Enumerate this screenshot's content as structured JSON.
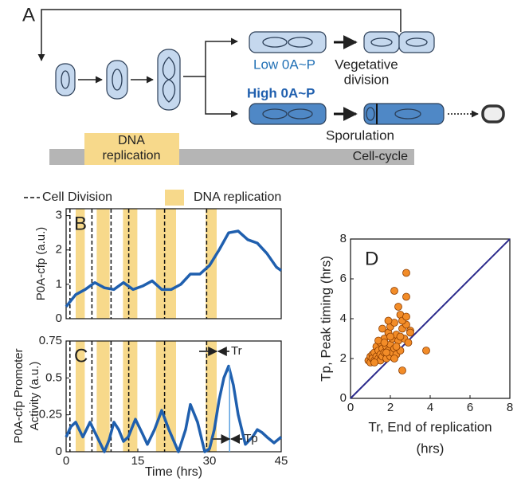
{
  "panel_a": {
    "label": "A",
    "low_label": "Low 0A~P",
    "vegetative": [
      "Vegetative",
      "division"
    ],
    "high_label": "High 0A~P",
    "sporulation": "Sporulation",
    "replication": [
      "DNA",
      "replication"
    ],
    "cell_cycle": "Cell-cycle"
  },
  "chart_data": [
    {
      "type": "line",
      "panel": "B",
      "ylabel": "P0A-cfp (a.u.)",
      "legend": [
        "Cell Division",
        "DNA replication"
      ],
      "x": [
        0,
        2,
        4,
        6,
        8,
        10,
        12,
        14,
        16,
        18,
        20,
        22,
        24,
        26,
        28,
        30,
        32,
        34,
        36,
        38,
        40,
        42,
        44,
        45
      ],
      "values": [
        0.35,
        0.7,
        0.85,
        1.05,
        0.9,
        0.85,
        1.05,
        0.85,
        0.95,
        1.1,
        0.85,
        0.85,
        1.0,
        1.3,
        1.3,
        1.55,
        2.0,
        2.5,
        2.55,
        2.3,
        2.2,
        1.9,
        1.5,
        1.4
      ],
      "color": "#1f5fae",
      "band_color": "#f7d98b",
      "divisions": [
        0.8,
        5.4,
        9.4,
        13.1,
        20.6,
        29.4
      ],
      "replication": [
        [
          2,
          3.9
        ],
        [
          6.4,
          9.1
        ],
        [
          11.9,
          14.9
        ],
        [
          18.8,
          23
        ],
        [
          29.2,
          31.5
        ]
      ],
      "xlim": [
        0,
        45
      ],
      "ylim": [
        0,
        3.2
      ],
      "yticks": [
        0,
        1,
        2,
        3
      ]
    },
    {
      "type": "line",
      "panel": "C",
      "ylabel": [
        "P0A-cfp Promoter",
        "Activity (a.u.)"
      ],
      "xlabel": "Time (hrs)",
      "x": [
        0,
        1,
        2,
        3.5,
        5,
        6.5,
        8,
        9,
        10,
        11,
        12,
        13,
        14.5,
        16,
        17,
        18.5,
        20,
        21.5,
        23.5,
        25,
        26,
        27.5,
        29,
        30,
        31,
        32,
        33,
        34,
        35,
        36,
        37.5,
        39,
        40,
        41,
        42,
        43.5,
        45
      ],
      "values": [
        0.1,
        0.17,
        0.2,
        0.1,
        0.2,
        0.1,
        0.0,
        0.08,
        0.2,
        0.15,
        0.07,
        0.1,
        0.22,
        0.12,
        0.05,
        0.15,
        0.28,
        0.15,
        0.0,
        0.15,
        0.32,
        0.2,
        0.0,
        0.02,
        0.15,
        0.35,
        0.5,
        0.58,
        0.45,
        0.25,
        0.05,
        0.1,
        0.15,
        0.13,
        0.1,
        0.06,
        0.1
      ],
      "color": "#1f5fae",
      "band_color": "#f7d98b",
      "divisions": [
        0.8,
        5.4,
        9.4,
        13.1,
        20.6,
        29.4
      ],
      "replication": [
        [
          2,
          3.9
        ],
        [
          6.4,
          9.1
        ],
        [
          11.9,
          14.9
        ],
        [
          18.8,
          23
        ],
        [
          29.2,
          31.5
        ]
      ],
      "annotations": [
        {
          "label": "Tr",
          "x": 31.5
        },
        {
          "label": "Tp",
          "x": 34.2
        }
      ],
      "xlim": [
        0,
        45
      ],
      "xticks": [
        0,
        15,
        30,
        45
      ],
      "ylim": [
        0,
        0.75
      ],
      "yticks": [
        0,
        0.25,
        0.5,
        0.75
      ]
    },
    {
      "type": "scatter",
      "panel": "D",
      "xlabel": [
        "Tr, End of replication",
        "(hrs)"
      ],
      "ylabel": "Tp, Peak timing (hrs)",
      "x": [
        0.9,
        1.0,
        1.0,
        1.1,
        1.1,
        1.2,
        1.2,
        1.3,
        1.3,
        1.4,
        1.4,
        1.5,
        1.5,
        1.5,
        1.6,
        1.6,
        1.7,
        1.7,
        1.8,
        1.8,
        1.9,
        1.9,
        2.0,
        2.0,
        2.0,
        2.1,
        2.1,
        2.2,
        2.2,
        2.3,
        2.3,
        2.4,
        2.5,
        2.5,
        2.6,
        2.7,
        2.8,
        2.9,
        3.0,
        1.2,
        1.6,
        1.9,
        2.2,
        2.4,
        2.6,
        2.8,
        3.0,
        1.4,
        1.8,
        2.3,
        2.8,
        3.8,
        2.6,
        2.2,
        2.5,
        2.8,
        2.0,
        1.7
      ],
      "y": [
        1.9,
        2.1,
        1.8,
        2.2,
        2.0,
        1.9,
        2.3,
        2.1,
        2.6,
        2.0,
        2.4,
        1.9,
        2.2,
        2.8,
        2.1,
        2.5,
        2.3,
        3.0,
        2.0,
        2.6,
        2.4,
        3.3,
        2.1,
        2.7,
        3.6,
        2.3,
        3.0,
        2.5,
        3.8,
        2.2,
        3.2,
        2.9,
        2.4,
        4.2,
        3.5,
        3.0,
        3.7,
        2.8,
        3.4,
        1.8,
        3.5,
        3.9,
        2.0,
        4.6,
        3.9,
        5.1,
        3.3,
        2.9,
        2.3,
        2.6,
        4.1,
        2.4,
        1.4,
        5.4,
        3.1,
        6.3,
        3.1,
        2.8
      ],
      "color": "#f28c28",
      "edge_color": "#8a3c00",
      "diagonal_color": "#2b2a8c",
      "xlim": [
        0,
        8
      ],
      "xticks": [
        0,
        2,
        4,
        6,
        8
      ],
      "ylim": [
        0,
        8
      ],
      "yticks": [
        0,
        2,
        4,
        6,
        8
      ]
    }
  ]
}
